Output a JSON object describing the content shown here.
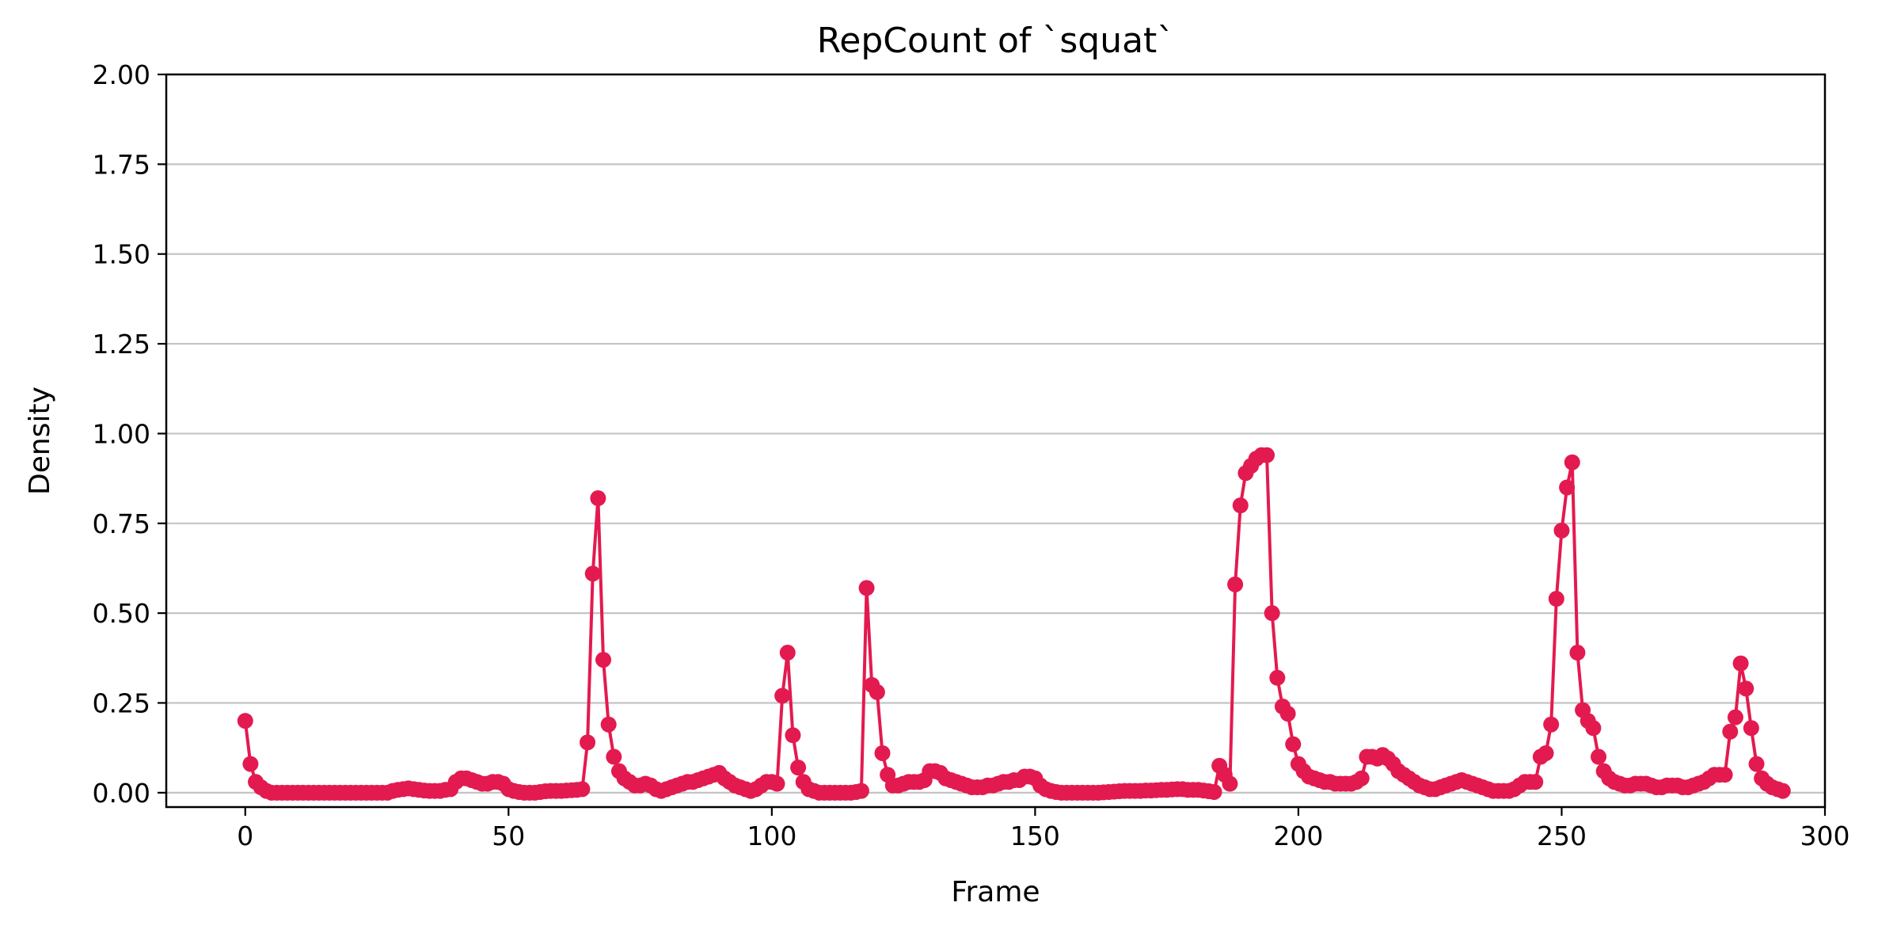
{
  "chart_data": {
    "type": "line",
    "title": "RepCount of `squat`",
    "xlabel": "Frame",
    "ylabel": "Density",
    "xlim": [
      -15,
      300
    ],
    "ylim": [
      -0.04,
      2.0
    ],
    "xticks": [
      0,
      50,
      100,
      150,
      200,
      250,
      300
    ],
    "yticks": [
      0.0,
      0.25,
      0.5,
      0.75,
      1.0,
      1.25,
      1.5,
      1.75,
      2.0
    ],
    "ytick_labels": [
      "0.00",
      "0.25",
      "0.50",
      "0.75",
      "1.00",
      "1.25",
      "1.50",
      "1.75",
      "2.00"
    ],
    "grid": "horizontal",
    "series": [
      {
        "color": "#e31a4f",
        "marker": "circle",
        "x_start": 0,
        "x_step": 1,
        "values": [
          0.2,
          0.08,
          0.03,
          0.015,
          0.005,
          0.0,
          0.0,
          0.0,
          0.0,
          0.0,
          0.0,
          0.0,
          0.0,
          0.0,
          0.0,
          0.0,
          0.0,
          0.0,
          0.0,
          0.0,
          0.0,
          0.0,
          0.0,
          0.0,
          0.0,
          0.0,
          0.0,
          0.0,
          0.005,
          0.008,
          0.01,
          0.012,
          0.01,
          0.008,
          0.006,
          0.005,
          0.005,
          0.005,
          0.008,
          0.01,
          0.03,
          0.04,
          0.04,
          0.035,
          0.03,
          0.025,
          0.025,
          0.03,
          0.03,
          0.025,
          0.01,
          0.005,
          0.002,
          0.0,
          0.0,
          0.0,
          0.002,
          0.004,
          0.005,
          0.005,
          0.005,
          0.006,
          0.007,
          0.008,
          0.01,
          0.14,
          0.61,
          0.82,
          0.37,
          0.19,
          0.1,
          0.06,
          0.04,
          0.03,
          0.02,
          0.02,
          0.025,
          0.02,
          0.01,
          0.005,
          0.01,
          0.015,
          0.02,
          0.025,
          0.03,
          0.03,
          0.035,
          0.04,
          0.045,
          0.05,
          0.055,
          0.04,
          0.03,
          0.02,
          0.015,
          0.01,
          0.005,
          0.01,
          0.02,
          0.03,
          0.03,
          0.025,
          0.27,
          0.39,
          0.16,
          0.07,
          0.03,
          0.01,
          0.005,
          0.0,
          0.0,
          0.0,
          0.0,
          0.0,
          0.0,
          0.0,
          0.002,
          0.005,
          0.57,
          0.3,
          0.28,
          0.11,
          0.05,
          0.02,
          0.02,
          0.025,
          0.03,
          0.03,
          0.03,
          0.035,
          0.06,
          0.06,
          0.055,
          0.04,
          0.035,
          0.03,
          0.025,
          0.02,
          0.015,
          0.015,
          0.015,
          0.02,
          0.02,
          0.025,
          0.03,
          0.03,
          0.035,
          0.035,
          0.045,
          0.045,
          0.04,
          0.02,
          0.01,
          0.005,
          0.002,
          0.0,
          0.0,
          0.0,
          0.0,
          0.0,
          0.0,
          0.0,
          0.0,
          0.001,
          0.002,
          0.003,
          0.004,
          0.005,
          0.005,
          0.005,
          0.005,
          0.006,
          0.006,
          0.007,
          0.008,
          0.008,
          0.009,
          0.01,
          0.01,
          0.008,
          0.008,
          0.008,
          0.006,
          0.004,
          0.002,
          0.075,
          0.05,
          0.025,
          0.58,
          0.8,
          0.89,
          0.91,
          0.93,
          0.94,
          0.94,
          0.5,
          0.32,
          0.24,
          0.22,
          0.135,
          0.08,
          0.06,
          0.045,
          0.04,
          0.035,
          0.03,
          0.03,
          0.025,
          0.025,
          0.025,
          0.025,
          0.03,
          0.04,
          0.1,
          0.1,
          0.095,
          0.105,
          0.095,
          0.08,
          0.06,
          0.05,
          0.04,
          0.03,
          0.02,
          0.015,
          0.01,
          0.01,
          0.015,
          0.02,
          0.025,
          0.03,
          0.035,
          0.03,
          0.025,
          0.02,
          0.015,
          0.01,
          0.005,
          0.005,
          0.005,
          0.005,
          0.01,
          0.02,
          0.03,
          0.03,
          0.03,
          0.1,
          0.11,
          0.19,
          0.54,
          0.73,
          0.85,
          0.92,
          0.39,
          0.23,
          0.2,
          0.18,
          0.1,
          0.06,
          0.04,
          0.03,
          0.025,
          0.02,
          0.02,
          0.025,
          0.025,
          0.025,
          0.02,
          0.015,
          0.015,
          0.02,
          0.02,
          0.02,
          0.015,
          0.015,
          0.02,
          0.025,
          0.03,
          0.04,
          0.05,
          0.05,
          0.05,
          0.17,
          0.21,
          0.36,
          0.29,
          0.18,
          0.08,
          0.04,
          0.025,
          0.015,
          0.01,
          0.005
        ]
      }
    ]
  }
}
